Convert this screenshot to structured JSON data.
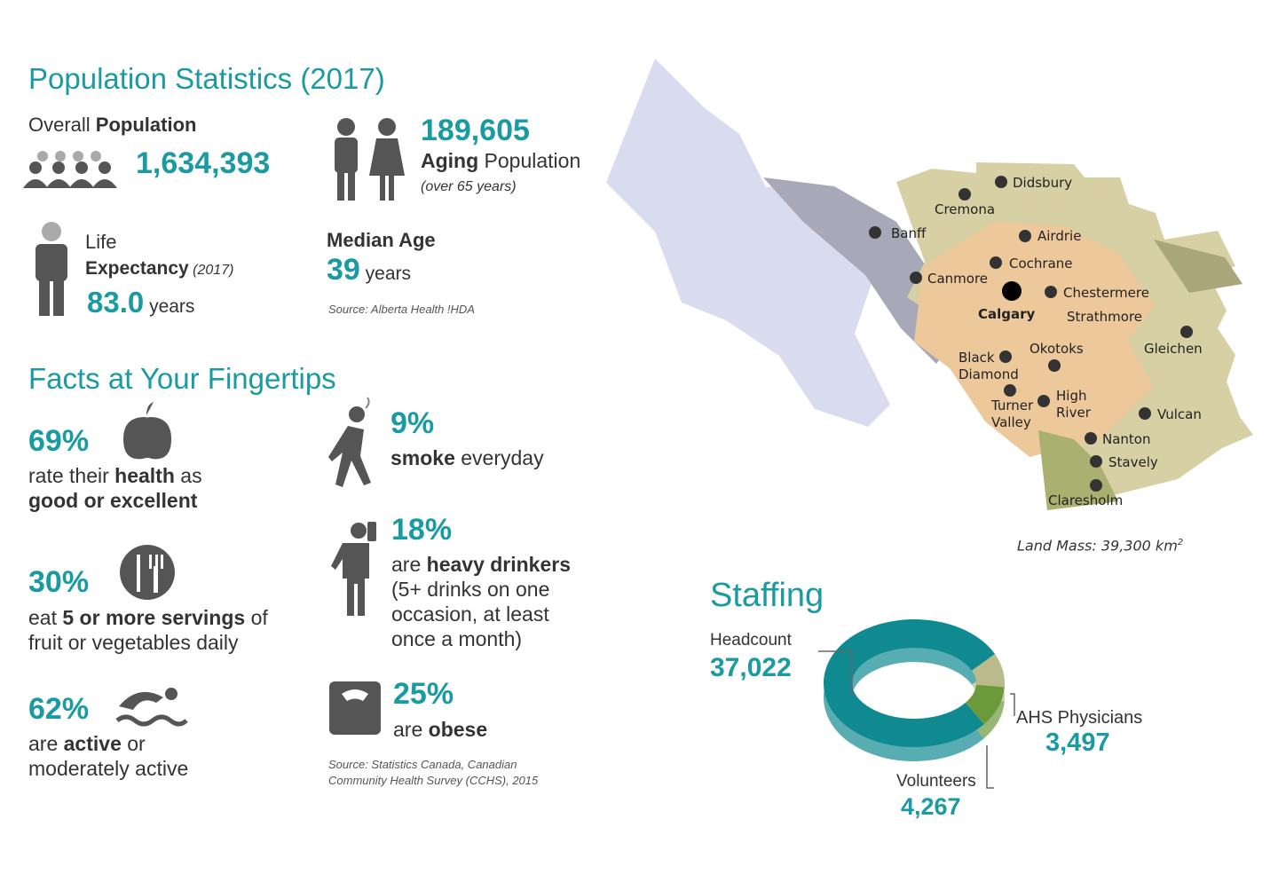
{
  "population": {
    "title": "Population Statistics (2017)",
    "overall": {
      "label": "Overall ",
      "label_bold": "Population",
      "value": "1,634,393"
    },
    "aging": {
      "value": "189,605",
      "label_bold": "Aging",
      "label": " Population",
      "note": "(over 65 years)"
    },
    "life": {
      "line1": "Life",
      "line2_bold": "Expectancy",
      "line2_note": " (2017)",
      "value": "83.0",
      "unit": " years"
    },
    "median": {
      "label": "Median Age",
      "value": "39",
      "unit": " years"
    },
    "source": "Source: Alberta Health !HDA"
  },
  "facts": {
    "title": "Facts at Your Fingertips",
    "items": [
      {
        "value": "69%",
        "lines": [
          [
            {
              "text": "rate their "
            },
            {
              "text": "health",
              "bold": true
            },
            {
              "text": " as"
            }
          ],
          [
            {
              "text": "good or excellent",
              "bold": true
            }
          ]
        ]
      },
      {
        "value": "30%",
        "lines": [
          [
            {
              "text": "eat "
            },
            {
              "text": "5 or more servings",
              "bold": true
            },
            {
              "text": " of"
            }
          ],
          [
            {
              "text": "fruit or vegetables daily"
            }
          ]
        ]
      },
      {
        "value": "62%",
        "lines": [
          [
            {
              "text": "are "
            },
            {
              "text": "active",
              "bold": true
            },
            {
              "text": " or"
            }
          ],
          [
            {
              "text": "moderately active"
            }
          ]
        ]
      },
      {
        "value": "9%",
        "lines": [
          [
            {
              "text": "smoke",
              "bold": true
            },
            {
              "text": " everyday"
            }
          ]
        ]
      },
      {
        "value": "18%",
        "lines": [
          [
            {
              "text": "are "
            },
            {
              "text": "heavy drinkers",
              "bold": true
            }
          ],
          [
            {
              "text": "(5+ drinks on one"
            }
          ],
          [
            {
              "text": "occasion, at least"
            }
          ],
          [
            {
              "text": "once a month)"
            }
          ]
        ]
      },
      {
        "value": "25%",
        "lines": [
          [
            {
              "text": "are "
            },
            {
              "text": "obese",
              "bold": true
            }
          ]
        ]
      }
    ],
    "source": [
      "Source: Statistics Canada, Canadian",
      "Community Health Survey (CCHS), 2015"
    ]
  },
  "map": {
    "cities": [
      [
        "Didsbury"
      ],
      [
        "Cremona"
      ],
      [
        "Banff"
      ],
      [
        "Airdrie"
      ],
      [
        "Cochrane"
      ],
      [
        "Canmore"
      ],
      [
        "Calgary"
      ],
      [
        "Chestermere"
      ],
      [
        "Strathmore"
      ],
      [
        "Gleichen"
      ],
      [
        "Okotoks"
      ],
      [
        "Black",
        "Diamond"
      ],
      [
        "High",
        "River"
      ],
      [
        "Turner",
        "Valley"
      ],
      [
        "Vulcan"
      ],
      [
        "Nanton"
      ],
      [
        "Stavely"
      ],
      [
        "Claresholm"
      ]
    ],
    "land_mass": "Land Mass: 39,300 km",
    "land_mass_sup": "2"
  },
  "staffing": {
    "title": "Staffing",
    "segments": [
      {
        "name": "AHS Physicians",
        "value": 3497,
        "value_label": "3,497",
        "color": "#b9bb8c"
      },
      {
        "name": "Volunteers",
        "value": 4267,
        "value_label": "4,267",
        "color": "#6b9a3a"
      },
      {
        "name": "Headcount",
        "value": 37022,
        "value_label": "37,022",
        "color": "#0f8a91"
      }
    ]
  }
}
